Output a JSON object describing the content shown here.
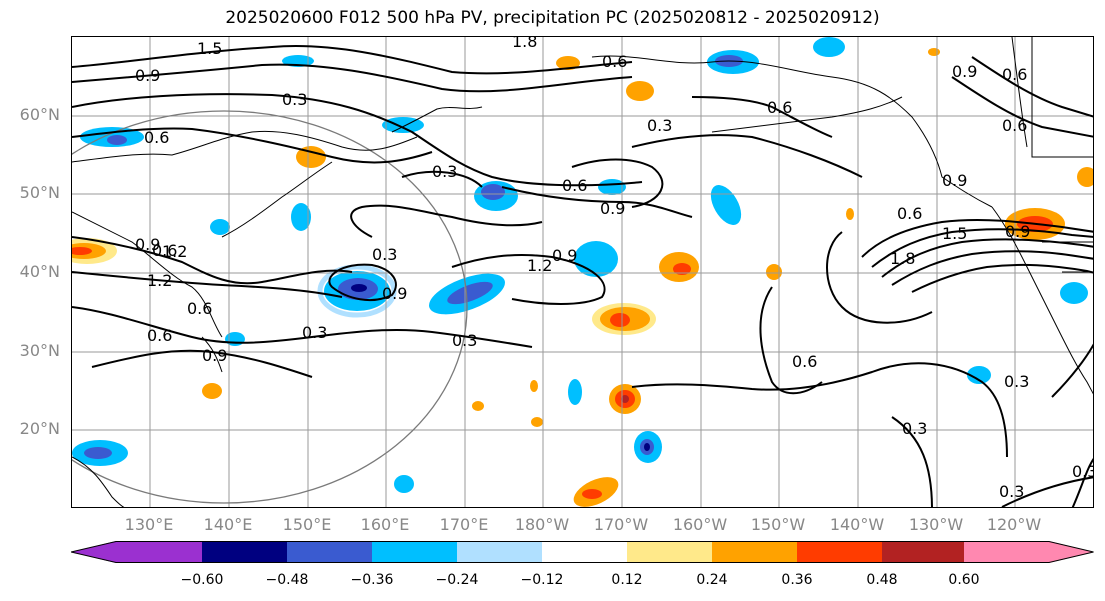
{
  "title": "2025020600 F012 500 hPa PV, precipitation PC (2025020812 - 2025020912)",
  "lat_labels": [
    "60°N",
    "50°N",
    "40°N",
    "30°N",
    "20°N"
  ],
  "lon_labels": [
    "130°E",
    "140°E",
    "150°E",
    "160°E",
    "170°E",
    "180°W",
    "170°W",
    "160°W",
    "150°W",
    "140°W",
    "130°W",
    "120°W"
  ],
  "contour_labels": [
    "1.5",
    "0.9",
    "0.3",
    "0.6",
    "1.8",
    "1.2",
    "0.3",
    "0.6",
    "0.9",
    "0.6",
    "0.3",
    "0.9",
    "0.6",
    "0.9",
    "1.2",
    "0.9",
    "1.5",
    "0.6",
    "1.8",
    "0.9",
    "0.6",
    "0.3",
    "0.6",
    "0.6",
    "0.3",
    "0.3",
    "0.3",
    "0.6",
    "0.9",
    "0.3",
    "0.6",
    "0.9",
    "1.2",
    "0.6",
    "0.9"
  ],
  "colorbar": {
    "ticks": [
      "−0.60",
      "−0.48",
      "−0.36",
      "−0.24",
      "−0.12",
      "0.12",
      "0.24",
      "0.36",
      "0.48",
      "0.60"
    ],
    "colors": [
      "#9b30d0",
      "#000080",
      "#3a5bd0",
      "#00bfff",
      "#b0e0ff",
      "#ffffff",
      "#ffe98a",
      "#ffa200",
      "#ff3c00",
      "#b22222",
      "#ff88b0"
    ]
  }
}
